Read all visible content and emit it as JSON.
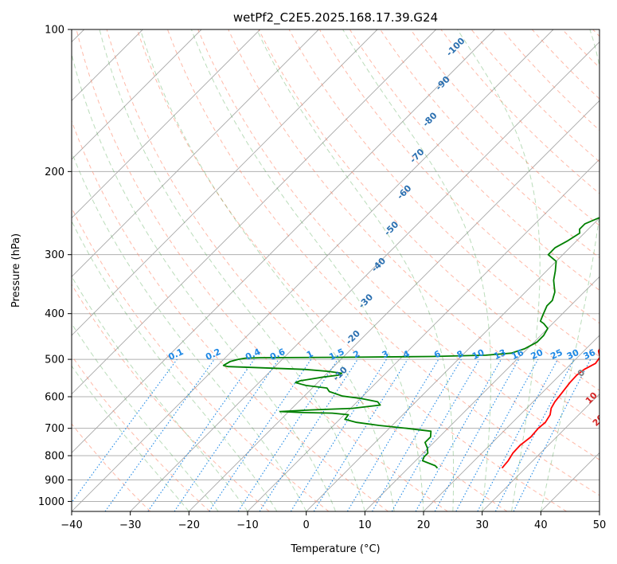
{
  "chart_data": {
    "type": "line",
    "title": "wetPf2_C2E5.2025.168.17.39.G24",
    "xlabel": "Temperature (°C)",
    "ylabel": "Pressure (hPa)",
    "xlim": [
      -40,
      50
    ],
    "ylim": [
      1050,
      100
    ],
    "y_scale": "log",
    "grid": true,
    "x_ticks": [
      -40,
      -30,
      -20,
      -10,
      0,
      10,
      20,
      30,
      40,
      50
    ],
    "y_ticks": [
      100,
      200,
      300,
      400,
      500,
      600,
      700,
      800,
      900,
      1000
    ],
    "x_tick_labels": [
      "−40",
      "−30",
      "−20",
      "−10",
      "0",
      "10",
      "20",
      "30",
      "40",
      "50"
    ],
    "y_tick_labels": [
      "100",
      "200",
      "300",
      "400",
      "500",
      "600",
      "700",
      "800",
      "900",
      "1000"
    ],
    "series": [
      {
        "color": "#ff0000",
        "points": [
          [
            26,
            850
          ],
          [
            25.8,
            820
          ],
          [
            25.3,
            790
          ],
          [
            25.2,
            760
          ],
          [
            25.6,
            730
          ],
          [
            25.4,
            700
          ],
          [
            25.6,
            680
          ],
          [
            25.1,
            655
          ],
          [
            24.2,
            635
          ],
          [
            23.7,
            615
          ],
          [
            23.4,
            590
          ],
          [
            23,
            560
          ],
          [
            22.9,
            540
          ],
          [
            23.2,
            525
          ],
          [
            24.1,
            510
          ],
          [
            23.8,
            495
          ],
          [
            22.5,
            480
          ],
          [
            21.5,
            450
          ],
          [
            20.6,
            425
          ],
          [
            19.9,
            405
          ],
          [
            19.8,
            380
          ],
          [
            19.4,
            360
          ],
          [
            18.5,
            345
          ],
          [
            16.2,
            320
          ],
          [
            14,
            295
          ],
          [
            11.7,
            270
          ],
          [
            10,
            250
          ],
          [
            8.2,
            230
          ],
          [
            6.5,
            210
          ],
          [
            4.7,
            190
          ],
          [
            2.6,
            170
          ],
          [
            0.4,
            155
          ],
          [
            -1.3,
            145
          ],
          [
            -2.2,
            138
          ],
          [
            -2,
            130
          ],
          [
            -0.5,
            120
          ],
          [
            3,
            110
          ],
          [
            6,
            100
          ]
        ]
      },
      {
        "color": "#008000",
        "points": [
          [
            15,
            850
          ],
          [
            14.2,
            840
          ],
          [
            11.2,
            820
          ],
          [
            10.8,
            805
          ],
          [
            10.8,
            790
          ],
          [
            9.8,
            770
          ],
          [
            8.5,
            750
          ],
          [
            8.5,
            730
          ],
          [
            7.6,
            710
          ],
          [
            3,
            700
          ],
          [
            -2.3,
            690
          ],
          [
            -6.6,
            680
          ],
          [
            -9.1,
            670
          ],
          [
            -9.3,
            655
          ],
          [
            -12.3,
            650
          ],
          [
            -17.6,
            648
          ],
          [
            -21.5,
            645
          ],
          [
            -16.5,
            640
          ],
          [
            -9.7,
            635
          ],
          [
            -5.5,
            625
          ],
          [
            -6.5,
            615
          ],
          [
            -10,
            605
          ],
          [
            -13.5,
            598
          ],
          [
            -16.5,
            585
          ],
          [
            -17.5,
            575
          ],
          [
            -21.5,
            568
          ],
          [
            -23.8,
            560
          ],
          [
            -23.3,
            555
          ],
          [
            -20,
            545
          ],
          [
            -17.7,
            540
          ],
          [
            -17.5,
            535
          ],
          [
            -20.2,
            530
          ],
          [
            -24.5,
            525
          ],
          [
            -34,
            520
          ],
          [
            -38,
            518
          ],
          [
            -39,
            515
          ],
          [
            -38.5,
            505
          ],
          [
            -37.5,
            500
          ],
          [
            -36.5,
            497
          ],
          [
            -34,
            496
          ],
          [
            -20,
            495
          ],
          [
            -5,
            493
          ],
          [
            4,
            490
          ],
          [
            8,
            485
          ],
          [
            9.5,
            475
          ],
          [
            10.5,
            460
          ],
          [
            10.5,
            445
          ],
          [
            10,
            430
          ],
          [
            8.5,
            420
          ],
          [
            7.5,
            415
          ],
          [
            7,
            405
          ],
          [
            6.5,
            395
          ],
          [
            6,
            385
          ],
          [
            6,
            375
          ],
          [
            5,
            360
          ],
          [
            2.8,
            340
          ],
          [
            1.5,
            325
          ],
          [
            0,
            310
          ],
          [
            -2.5,
            300
          ],
          [
            -2.5,
            290
          ],
          [
            -1.5,
            280
          ],
          [
            -0.8,
            270
          ],
          [
            -1.5,
            265
          ],
          [
            -1.5,
            258
          ],
          [
            0,
            250
          ],
          [
            2,
            242
          ],
          [
            5,
            232
          ],
          [
            6.4,
            222
          ],
          [
            4.8,
            212
          ],
          [
            3.7,
            200
          ],
          [
            2.4,
            190
          ],
          [
            1.3,
            180
          ],
          [
            0,
            170
          ],
          [
            -1,
            160
          ],
          [
            -1.8,
            150
          ],
          [
            -2.2,
            140
          ],
          [
            -2.3,
            133
          ],
          [
            -3.2,
            128
          ],
          [
            -3.8,
            124
          ],
          [
            -3.5,
            121
          ],
          [
            -2,
            118
          ],
          [
            -1.2,
            115
          ],
          [
            -0.5,
            110
          ],
          [
            -0.8,
            106
          ],
          [
            0,
            102
          ],
          [
            0.5,
            100
          ]
        ]
      }
    ],
    "dry_adiabat_labels": [
      "-100",
      "-90",
      "-80",
      "-70",
      "-60",
      "-50",
      "-40",
      "-30",
      "-20",
      "-10",
      "0",
      "10",
      "20",
      "30",
      "40"
    ],
    "mixing_ratio_labels": [
      "0.1",
      "0.2",
      "0.4",
      "0.6",
      "1",
      "1.5",
      "2",
      "3",
      "4",
      "6",
      "8",
      "10",
      "13",
      "16",
      "20",
      "25",
      "30",
      "36"
    ],
    "colors": {
      "temperature": "#ff0000",
      "dewpoint": "#008000",
      "dry_adiabat": "#ff8060",
      "moist_adiabat": "#3a9a3a",
      "mixing_ratio": "#1e88e5",
      "isotherm": "#808080",
      "dry_adiabat_label": "#2a6fb0",
      "mixing_ratio_label": "#1e88e5",
      "zero_isotherm_label": "#808080",
      "positive_label": "#d62728"
    }
  }
}
